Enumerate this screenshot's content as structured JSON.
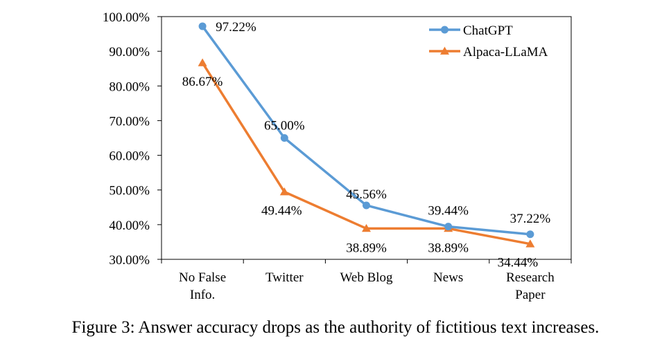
{
  "chart_data": {
    "type": "line",
    "categories": [
      [
        "No False",
        "Info."
      ],
      [
        "Twitter"
      ],
      [
        "Web Blog"
      ],
      [
        "News"
      ],
      [
        "Research",
        "Paper"
      ]
    ],
    "series": [
      {
        "name": "ChatGPT",
        "values": [
          97.22,
          65.0,
          45.56,
          39.44,
          37.22
        ],
        "labels": [
          "97.22%",
          "65.00%",
          "45.56%",
          "39.44%",
          "37.22%"
        ],
        "color": "#5B9BD5",
        "marker": "circle"
      },
      {
        "name": "Alpaca-LLaMA",
        "values": [
          86.67,
          49.44,
          38.89,
          38.89,
          34.44
        ],
        "labels": [
          "86.67%",
          "49.44%",
          "38.89%",
          "38.89%",
          "34.44%"
        ],
        "color": "#ED7D31",
        "marker": "triangle"
      }
    ],
    "ylim": [
      30,
      100
    ],
    "yticks": [
      30,
      40,
      50,
      60,
      70,
      80,
      90,
      100
    ],
    "ytick_labels": [
      "30.00%",
      "40.00%",
      "50.00%",
      "60.00%",
      "70.00%",
      "80.00%",
      "90.00%",
      "100.00%"
    ],
    "legend_position": "top-right",
    "grid": false
  },
  "caption": "Figure 3: Answer accuracy drops as the authority of fictitious text increases."
}
